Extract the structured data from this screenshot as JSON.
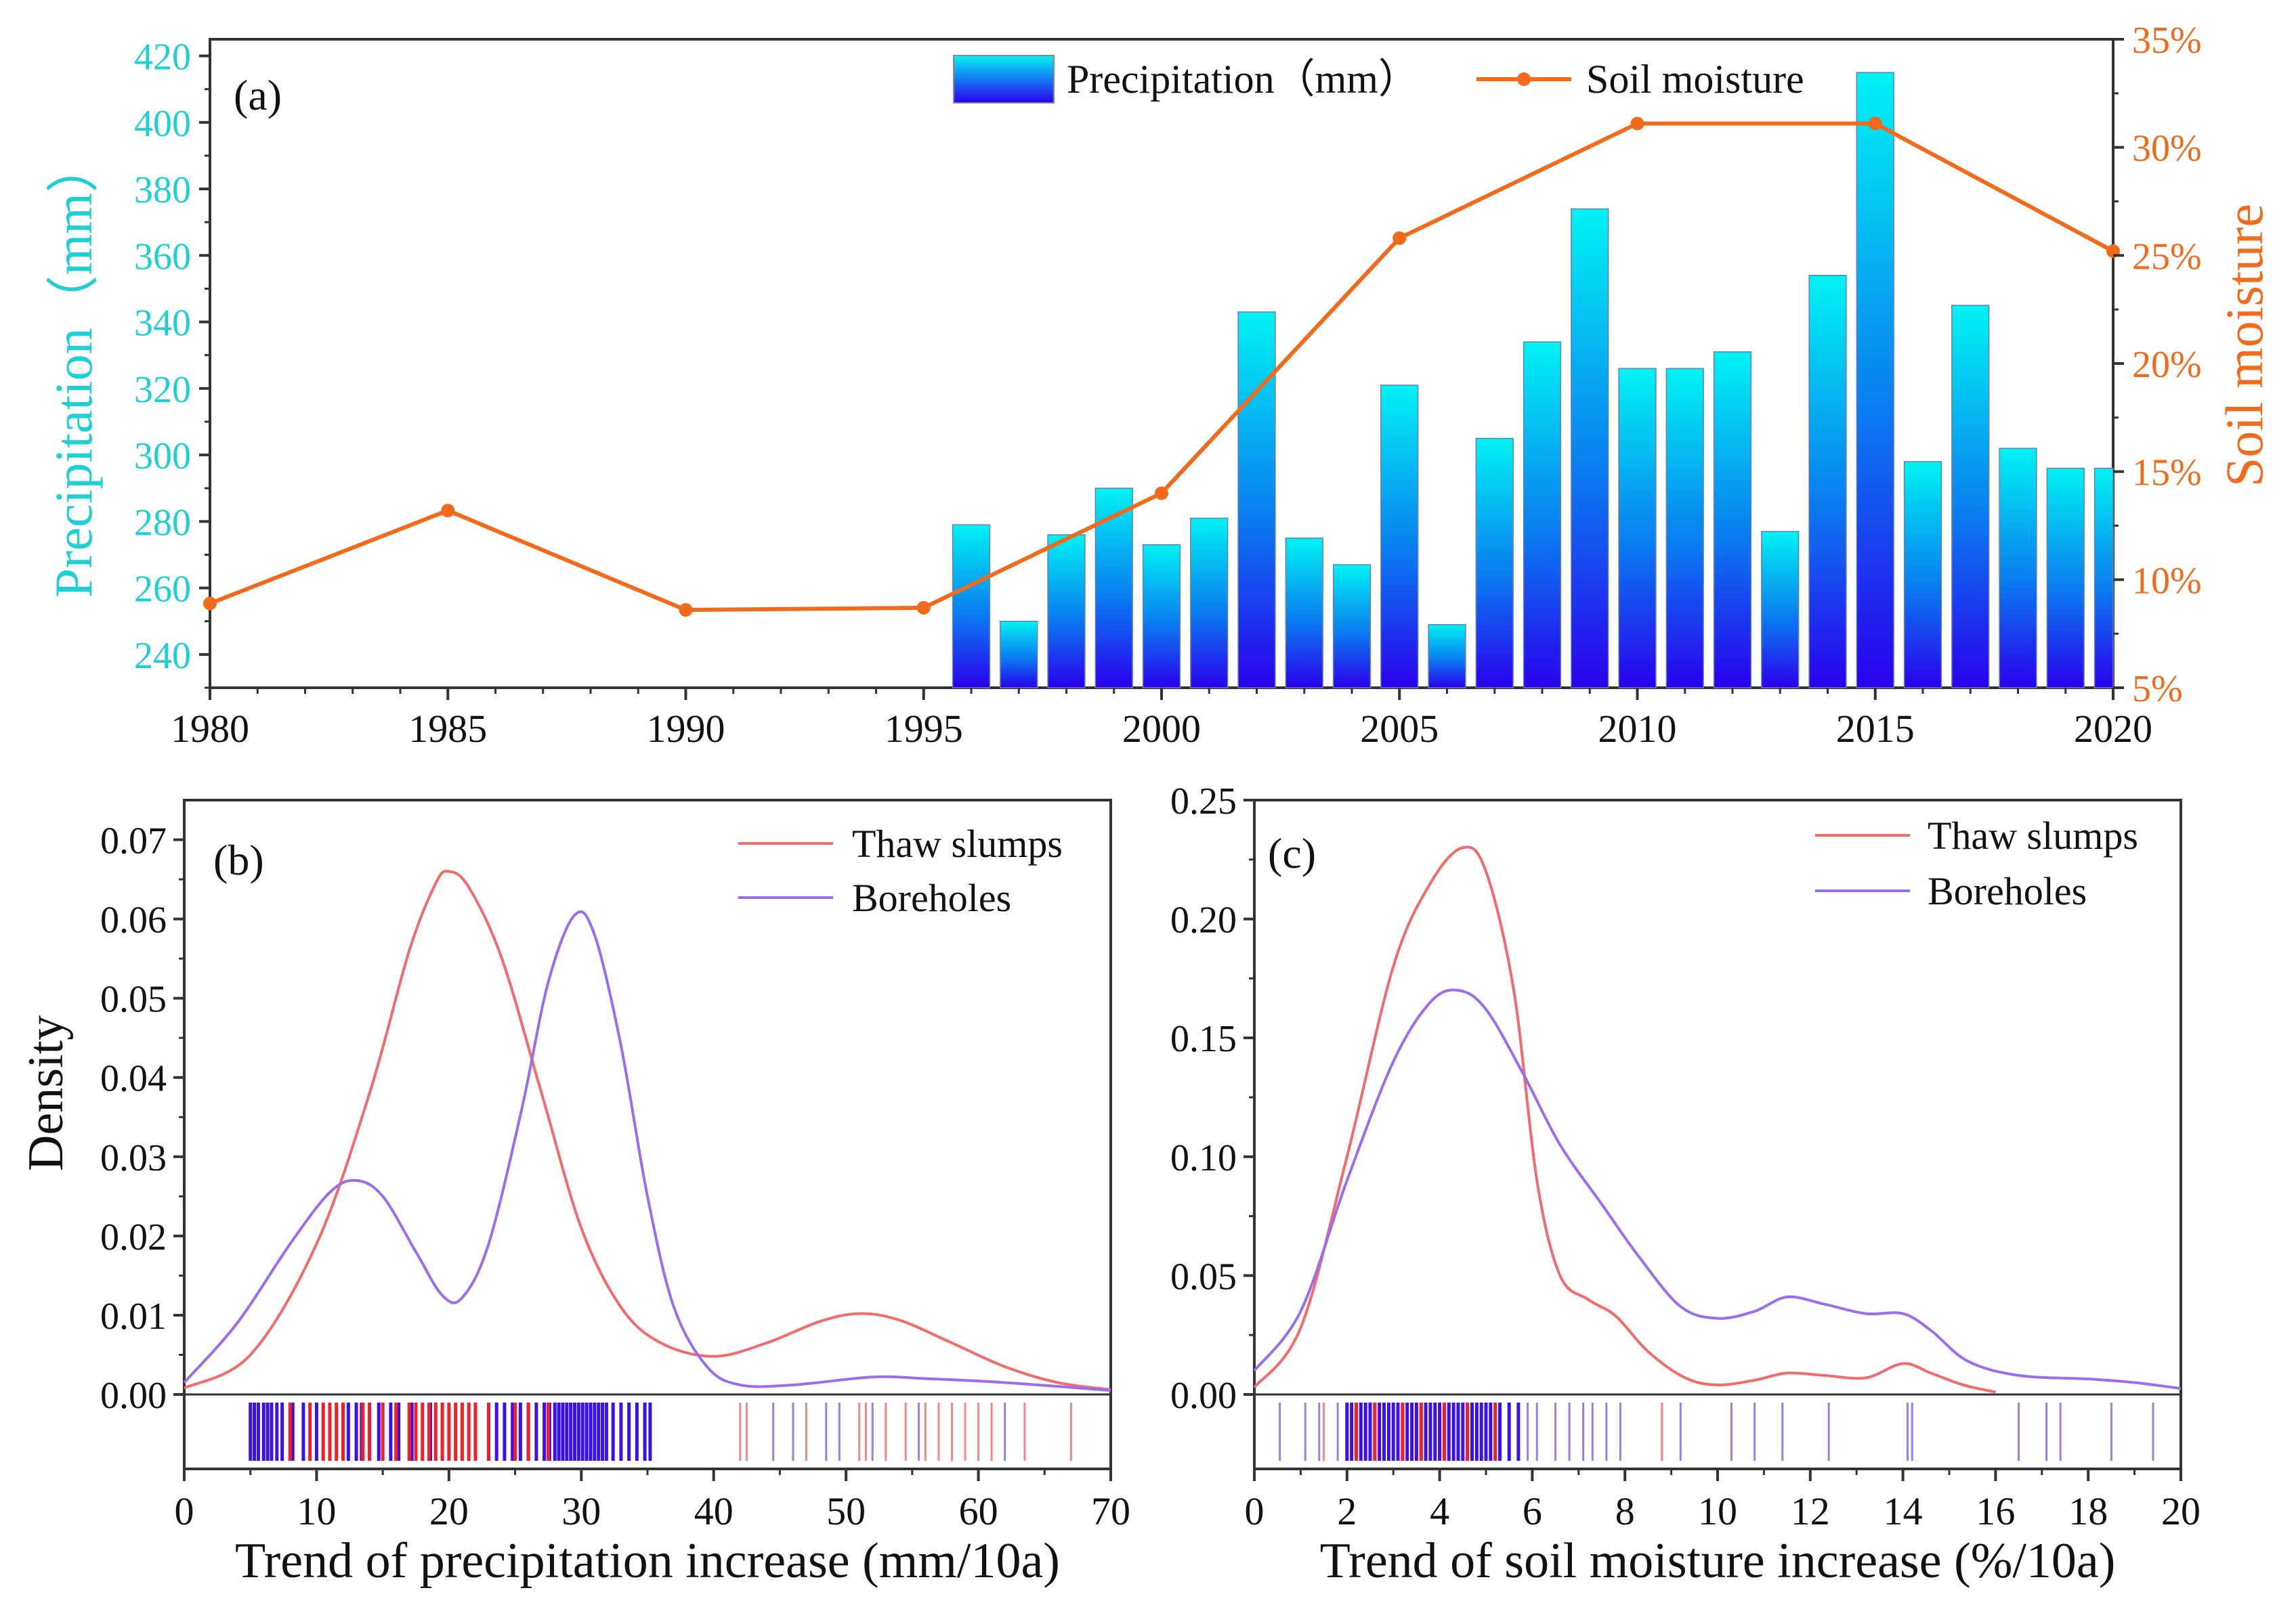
{
  "chart_data": [
    {
      "id": "a",
      "type": "bar+line",
      "panel_label": "(a)",
      "title": "",
      "xlabel": "",
      "ylabel_left": "Precipitation（mm）",
      "ylabel_right": "Soil moisture",
      "xlim": [
        1980,
        2020
      ],
      "ylim_left": [
        230,
        425
      ],
      "ylim_right": [
        5,
        35
      ],
      "x_ticks": [
        1980,
        1985,
        1990,
        1995,
        2000,
        2005,
        2010,
        2015,
        2020
      ],
      "y_ticks_left": [
        240,
        260,
        280,
        300,
        320,
        340,
        360,
        380,
        400,
        420
      ],
      "y_ticks_right": [
        "5%",
        "10%",
        "15%",
        "20%",
        "25%",
        "30%",
        "35%"
      ],
      "y_ticks_right_values": [
        5,
        10,
        15,
        20,
        25,
        30,
        35
      ],
      "legend": {
        "placement": "top-right",
        "entries": [
          "Precipitation（mm）",
          "Soil moisture"
        ]
      },
      "bar_series": {
        "name": "Precipitation（mm）",
        "x": [
          1996,
          1997,
          1998,
          1999,
          2000,
          2001,
          2002,
          2003,
          2004,
          2005,
          2006,
          2007,
          2008,
          2009,
          2010,
          2011,
          2012,
          2013,
          2014,
          2015,
          2016,
          2017,
          2018,
          2019,
          2020
        ],
        "values": [
          279,
          250,
          276,
          290,
          273,
          281,
          343,
          275,
          267,
          321,
          249,
          305,
          334,
          374,
          326,
          326,
          331,
          277,
          354,
          415,
          298,
          345,
          302,
          296,
          296
        ]
      },
      "line_series": {
        "name": "Soil moisture",
        "x": [
          1980,
          1985,
          1990,
          1995,
          2000,
          2005,
          2010,
          2015,
          2020
        ],
        "values": [
          8.9,
          13.2,
          8.6,
          8.7,
          14.0,
          25.8,
          31.1,
          31.1,
          25.2
        ]
      },
      "colors": {
        "bar_top": "#00f3f3",
        "bar_bottom": "#2a00ee",
        "line": "#f36b1a",
        "left_axis": "#1ecfd3",
        "right_axis": "#f36b1a"
      }
    },
    {
      "id": "b",
      "type": "density",
      "panel_label": "(b)",
      "xlabel": "Trend of precipitation increase (mm/10a)",
      "ylabel": "Density",
      "xlim": [
        0,
        70
      ],
      "ylim": [
        0,
        0.075
      ],
      "x_ticks": [
        0,
        10,
        20,
        30,
        40,
        50,
        60,
        70
      ],
      "y_ticks": [
        "0.00",
        "0.01",
        "0.02",
        "0.03",
        "0.04",
        "0.05",
        "0.06",
        "0.07"
      ],
      "legend": {
        "placement": "top-right",
        "entries": [
          "Thaw slumps",
          "Boreholes"
        ]
      },
      "series": [
        {
          "name": "Thaw slumps",
          "color": "#f26a6a",
          "points": [
            [
              0,
              0.0008
            ],
            [
              5,
              0.005
            ],
            [
              10,
              0.019
            ],
            [
              14,
              0.038
            ],
            [
              17,
              0.056
            ],
            [
              19,
              0.0645
            ],
            [
              20,
              0.066
            ],
            [
              21.5,
              0.064
            ],
            [
              24,
              0.055
            ],
            [
              27,
              0.038
            ],
            [
              30,
              0.021
            ],
            [
              33,
              0.011
            ],
            [
              36,
              0.0065
            ],
            [
              40,
              0.0048
            ],
            [
              44,
              0.0065
            ],
            [
              48,
              0.0092
            ],
            [
              51,
              0.0102
            ],
            [
              54,
              0.0094
            ],
            [
              58,
              0.0065
            ],
            [
              62,
              0.0035
            ],
            [
              66,
              0.0015
            ],
            [
              70,
              0.0006
            ]
          ]
        },
        {
          "name": "Boreholes",
          "color": "#9b6cf0",
          "points": [
            [
              0,
              0.0015
            ],
            [
              4,
              0.009
            ],
            [
              8,
              0.019
            ],
            [
              11,
              0.0255
            ],
            [
              13,
              0.027
            ],
            [
              15,
              0.025
            ],
            [
              17.5,
              0.018
            ],
            [
              19.5,
              0.0125
            ],
            [
              21,
              0.0122
            ],
            [
              23,
              0.019
            ],
            [
              25.5,
              0.036
            ],
            [
              27.5,
              0.052
            ],
            [
              29.5,
              0.0605
            ],
            [
              31,
              0.058
            ],
            [
              33,
              0.044
            ],
            [
              35,
              0.025
            ],
            [
              37,
              0.011
            ],
            [
              39.5,
              0.0035
            ],
            [
              42,
              0.0012
            ],
            [
              46,
              0.0012
            ],
            [
              52,
              0.0022
            ],
            [
              56,
              0.002
            ],
            [
              62,
              0.0015
            ],
            [
              70,
              0.0005
            ]
          ]
        }
      ],
      "rug": {
        "Thaw slumps": [
          8,
          9.5,
          10.5,
          11,
          11.5,
          12,
          13.5,
          14,
          15,
          16,
          17,
          17.5,
          18,
          18.5,
          19,
          19.5,
          20,
          20.5,
          21,
          21.5,
          22,
          23,
          25,
          26,
          27.5,
          42,
          42.5,
          47,
          51,
          51.5,
          53,
          54.5,
          56,
          57,
          58,
          59,
          60,
          61,
          63.5,
          67
        ],
        "Boreholes": [
          5,
          5.3,
          5.6,
          6,
          6.3,
          6.6,
          7,
          7.4,
          8.2,
          9,
          10,
          12,
          12.4,
          13,
          13.4,
          14,
          14.7,
          15.6,
          16.2,
          17.2,
          18.6,
          23,
          23.6,
          24.2,
          24.8,
          25.4,
          26,
          26.6,
          27.2,
          27.6,
          28,
          28.3,
          28.6,
          28.9,
          29.2,
          29.5,
          29.8,
          30.1,
          30.4,
          30.7,
          31,
          31.3,
          31.6,
          31.9,
          32.4,
          33,
          33.6,
          34.2,
          34.8,
          35.2,
          44.5,
          46,
          48.5,
          49.5,
          52,
          55.5,
          58,
          62,
          63.5
        ]
      }
    },
    {
      "id": "c",
      "type": "density",
      "panel_label": "(c)",
      "xlabel": "Trend of soil moisture increase (%/10a)",
      "ylabel": "",
      "xlim": [
        0,
        20
      ],
      "ylim": [
        0,
        0.25
      ],
      "x_ticks": [
        0,
        2,
        4,
        6,
        8,
        10,
        12,
        14,
        16,
        18,
        20
      ],
      "y_ticks": [
        "0.00",
        "0.05",
        "0.10",
        "0.15",
        "0.20",
        "0.25"
      ],
      "legend": {
        "placement": "top-right",
        "entries": [
          "Thaw slumps",
          "Boreholes"
        ]
      },
      "series": [
        {
          "name": "Thaw slumps",
          "color": "#f26a6a",
          "points": [
            [
              0,
              0.003
            ],
            [
              1,
              0.028
            ],
            [
              2,
              0.1
            ],
            [
              3,
              0.18
            ],
            [
              3.8,
              0.215
            ],
            [
              4.5,
              0.23
            ],
            [
              5,
              0.22
            ],
            [
              5.6,
              0.17
            ],
            [
              6.1,
              0.09
            ],
            [
              6.6,
              0.05
            ],
            [
              7.2,
              0.04
            ],
            [
              7.8,
              0.033
            ],
            [
              8.5,
              0.018
            ],
            [
              9.3,
              0.007
            ],
            [
              10,
              0.004
            ],
            [
              10.8,
              0.006
            ],
            [
              11.5,
              0.009
            ],
            [
              12.3,
              0.008
            ],
            [
              13.2,
              0.007
            ],
            [
              14,
              0.013
            ],
            [
              14.6,
              0.009
            ],
            [
              15.3,
              0.004
            ],
            [
              16,
              0.001
            ]
          ]
        },
        {
          "name": "Boreholes",
          "color": "#9b6cf0",
          "points": [
            [
              0,
              0.01
            ],
            [
              1,
              0.035
            ],
            [
              2,
              0.09
            ],
            [
              3,
              0.14
            ],
            [
              3.8,
              0.165
            ],
            [
              4.4,
              0.17
            ],
            [
              5,
              0.162
            ],
            [
              5.8,
              0.135
            ],
            [
              6.6,
              0.105
            ],
            [
              7.5,
              0.08
            ],
            [
              8.3,
              0.058
            ],
            [
              9.2,
              0.037
            ],
            [
              10,
              0.032
            ],
            [
              10.8,
              0.035
            ],
            [
              11.5,
              0.041
            ],
            [
              12.3,
              0.038
            ],
            [
              13.2,
              0.034
            ],
            [
              14,
              0.034
            ],
            [
              14.6,
              0.027
            ],
            [
              15.4,
              0.014
            ],
            [
              16.5,
              0.008
            ],
            [
              18,
              0.0065
            ],
            [
              19,
              0.005
            ],
            [
              20,
              0.0025
            ]
          ]
        }
      ],
      "rug": {
        "Thaw slumps": [
          1.5,
          2.2,
          2.6,
          3.2,
          3.6,
          4.1,
          4.6,
          5.2,
          8.8
        ],
        "Boreholes": [
          0.55,
          1.1,
          1.4,
          1.8,
          2.0,
          2.1,
          2.2,
          2.3,
          2.4,
          2.5,
          2.6,
          2.7,
          2.8,
          2.9,
          3.0,
          3.1,
          3.2,
          3.3,
          3.4,
          3.5,
          3.6,
          3.7,
          3.8,
          3.9,
          4.0,
          4.1,
          4.2,
          4.3,
          4.4,
          4.5,
          4.6,
          4.7,
          4.8,
          4.9,
          5.0,
          5.1,
          5.3,
          5.5,
          5.7,
          5.9,
          6.1,
          6.5,
          6.8,
          7.1,
          7.3,
          7.6,
          7.9,
          8.8,
          9.2,
          10.3,
          10.8,
          11.4,
          12.4,
          14.1,
          14.2,
          16.5,
          17.1,
          17.4,
          18.5,
          19.4
        ]
      }
    }
  ]
}
